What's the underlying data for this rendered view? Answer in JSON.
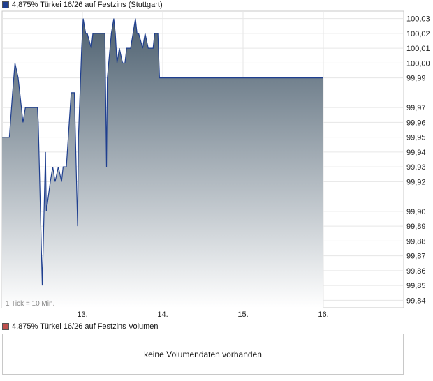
{
  "price_legend": {
    "label": "4,875% Türkei 16/26 auf Festzins (Stuttgart)",
    "color": "#1f3f8f"
  },
  "volume_legend": {
    "label": "4,875% Türkei 16/26 auf Festzins Volumen",
    "color": "#c0504d"
  },
  "volume_empty_text": "keine Volumendaten vorhanden",
  "tick_note": "1 Tick = 10 Min.",
  "chart_data": {
    "type": "area",
    "series": [
      {
        "name": "4,875% Türkei 16/26 auf Festzins (Stuttgart)",
        "x": [
          0,
          0.9,
          1.3,
          1.6,
          2.0,
          2.6,
          2.9,
          3.1,
          3.5,
          4.4,
          4.5,
          5.0,
          5.4,
          5.5,
          6.0,
          6.3,
          6.6,
          7.0,
          7.4,
          7.6,
          8.0,
          8.6,
          9.0,
          9.4,
          9.5,
          9.9,
          10.1,
          10.4,
          10.6,
          11.1,
          11.3,
          11.4,
          11.9,
          12.2,
          12.8,
          13.0,
          13.1,
          13.6,
          13.9,
          14.1,
          14.3,
          14.6,
          15.0,
          15.3,
          15.5,
          15.8,
          16.0,
          16.3,
          16.6,
          16.8,
          17.0,
          17.5,
          17.8,
          18.2,
          18.5,
          18.8,
          19.0,
          19.2,
          19.4,
          19.6,
          20.0,
          20.4,
          20.7,
          21.0,
          21.5,
          22.0,
          22.4,
          22.8,
          23.0,
          23.3,
          23.6,
          24.0,
          24.5,
          25.0,
          25.5,
          26.0,
          26.5,
          27.0,
          27.5,
          28.0,
          28.5,
          29.0,
          29.3,
          29.6,
          29.8,
          30.0,
          30.5,
          31.0,
          31.5,
          32.0,
          32.5,
          33.0,
          33.5,
          34.0,
          34.5,
          35.0,
          35.5,
          36.0,
          36.5,
          37.0,
          37.5,
          38.0,
          38.5,
          39.0,
          39.5,
          40.0
        ],
        "y": [
          99.95,
          99.95,
          99.98,
          100.0,
          99.99,
          99.96,
          99.97,
          99.97,
          99.97,
          99.97,
          99.96,
          99.85,
          99.94,
          99.9,
          99.92,
          99.93,
          99.92,
          99.93,
          99.92,
          99.93,
          99.93,
          99.98,
          99.98,
          99.89,
          99.95,
          100.01,
          100.03,
          100.02,
          100.02,
          100.01,
          100.02,
          100.02,
          100.02,
          100.02,
          100.02,
          99.93,
          99.99,
          100.02,
          100.03,
          100.02,
          100.0,
          100.01,
          100.0,
          100.0,
          100.01,
          100.01,
          100.01,
          100.02,
          100.03,
          100.02,
          100.02,
          100.01,
          100.02,
          100.01,
          100.01,
          100.01,
          100.02,
          100.02,
          100.02,
          99.99,
          99.99,
          99.99,
          99.99,
          99.99,
          99.99,
          99.99,
          99.99,
          99.99,
          99.99,
          99.99,
          99.99,
          99.99,
          99.99,
          99.99,
          99.99,
          99.99,
          99.99,
          99.99,
          99.99,
          99.99,
          99.99,
          99.99,
          99.99,
          99.99,
          99.99,
          99.99,
          99.99,
          99.99,
          99.99,
          99.99,
          99.99,
          99.99,
          99.99,
          99.99,
          99.99,
          99.99,
          99.99,
          99.99,
          99.99,
          99.99,
          99.99,
          99.99,
          99.99,
          99.99,
          99.99,
          99.99
        ]
      }
    ],
    "x_ticks": [
      {
        "x": 10,
        "label": "13."
      },
      {
        "x": 20,
        "label": "14."
      },
      {
        "x": 30,
        "label": "15."
      },
      {
        "x": 40,
        "label": "16."
      }
    ],
    "y_ticks": [
      "100,03",
      "100,02",
      "100,01",
      "100,00",
      "99,99",
      "99,97",
      "99,96",
      "99,95",
      "99,94",
      "99,93",
      "99,92",
      "99,90",
      "99,89",
      "99,88",
      "99,87",
      "99,86",
      "99,85",
      "99,84"
    ],
    "xlim": [
      0,
      50
    ],
    "ylim": [
      99.835,
      100.035
    ],
    "grid": true,
    "line_color": "#1f3f8f",
    "fill_top_color": "#4d6070",
    "fill_bottom_color": "#ffffff"
  }
}
